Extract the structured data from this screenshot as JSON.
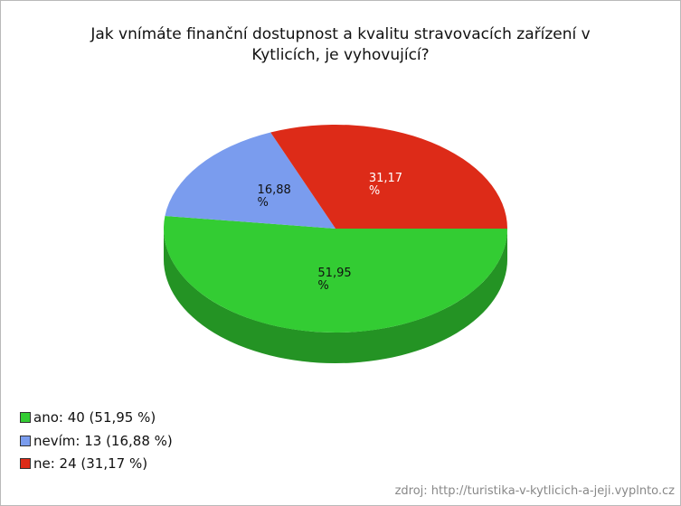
{
  "chart_data": {
    "type": "pie",
    "title": "Jak vnímáte finanční dostupnost a kvalitu stravovacích zařízení v Kytlicích, je vyhovující?",
    "legend_labels": [
      "ano: 40 (51,95 %)",
      "nevím: 13 (16,88 %)",
      "ne: 24 (31,17 %)"
    ],
    "values": [
      51.95,
      16.88,
      31.17
    ],
    "value_labels": [
      "51,95 %",
      "16,88 %",
      "31,17 %"
    ],
    "colors": [
      "#33cc33",
      "#7a9cee",
      "#dd2b18"
    ],
    "legend": "bottom-left",
    "source": "zdroj: http://turistika-v-kytlicich-a-jeji.vyplnto.cz"
  }
}
